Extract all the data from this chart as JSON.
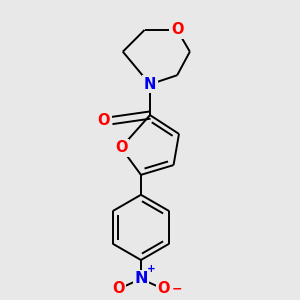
{
  "background_color": "#e8e8e8",
  "bond_color": "#000000",
  "atom_colors": {
    "O": "#ff0000",
    "N": "#0000ee",
    "C": "#000000"
  },
  "figsize": [
    3.0,
    3.0
  ],
  "dpi": 100,
  "lw": 1.4
}
